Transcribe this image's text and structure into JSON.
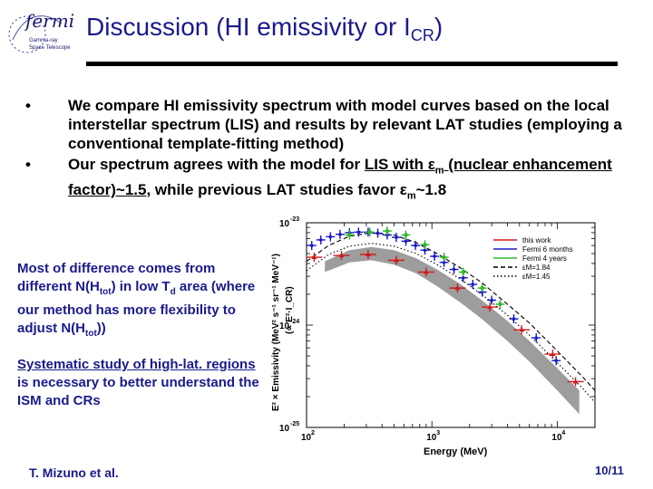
{
  "header": {
    "logo_text": "fermi",
    "logo_subtext_1": "Gamma-ray",
    "logo_subtext_2": "Space Telescope",
    "title_main": "Discussion (HI emissivity or I",
    "title_sub": "CR",
    "title_end": ")"
  },
  "bullets": [
    {
      "marker": "•",
      "text": "We compare HI emissivity spectrum with model curves based on the local interstellar spectrum (LIS) and results by relevant LAT studies (employing a conventional template-fitting method)"
    },
    {
      "marker": "•",
      "p1": "Our spectrum agrees with the model for ",
      "p2": "LIS with ε",
      "p3": "m",
      "p4": " (nuclear enhancement factor)~1.5",
      "p5": ", while previous LAT studies favor ε",
      "p6": "m",
      "p7": "~1.8"
    }
  ],
  "side_note_1": {
    "a": "Most of difference comes from different N(H",
    "b": "tot",
    "c": ") in low T",
    "d": "d",
    "e": " area (where our method has more flexibility to adjust N(H",
    "f": "tot",
    "g": "))"
  },
  "side_note_2": {
    "underlined": "Systematic study of high-lat. regions",
    "rest": " is necessary to better understand the ISM and CRs"
  },
  "footer": {
    "author": "T. Mizuno et al.",
    "page_num": "10",
    "page_total": "/11"
  },
  "chart_data": {
    "type": "scatter",
    "xlabel": "Energy (MeV)",
    "ylabel": "E² × Emissivity (MeV² s⁻¹ sr⁻¹ MeV⁻¹)",
    "ylabel_right": "(∝ E²·I_CR)",
    "x_scale": "log",
    "y_scale": "log",
    "xlim": [
      100,
      20000
    ],
    "ylim": [
      1e-25,
      1e-23
    ],
    "x_ticks": [
      {
        "value": 100,
        "base": "10",
        "exp": "2"
      },
      {
        "value": 1000,
        "base": "10",
        "exp": "3"
      },
      {
        "value": 10000,
        "base": "10",
        "exp": "4"
      }
    ],
    "y_ticks": [
      {
        "value": 1e-23,
        "base": "10",
        "exp": "-23"
      },
      {
        "value": 1e-24,
        "base": "10",
        "exp": "-24"
      },
      {
        "value": 1e-25,
        "base": "10",
        "exp": "-25"
      }
    ],
    "legend_position": "top-right",
    "colors": {
      "this_work": "#d11a1a",
      "fermi6": "#1818c8",
      "fermi4": "#2db82d",
      "band": "#8c8c8c",
      "model": "#000000"
    },
    "series": [
      {
        "name": "this work",
        "style": "points",
        "color": "#d11a1a",
        "x": [
          115,
          190,
          310,
          520,
          900,
          1600,
          2900,
          5200,
          9200,
          14000
        ],
        "y": [
          4.6e-24,
          4.8e-24,
          4.9e-24,
          4.3e-24,
          3.3e-24,
          2.3e-24,
          1.5e-24,
          9e-25,
          5.2e-25,
          2.8e-25
        ]
      },
      {
        "name": "Fermi 6 months",
        "style": "points",
        "color": "#1818c8",
        "x": [
          110,
          130,
          155,
          185,
          220,
          260,
          310,
          370,
          440,
          520,
          620,
          740,
          880,
          1050,
          1250,
          1500,
          1780,
          2120,
          2520,
          3000,
          4500,
          6800,
          9800
        ],
        "y": [
          6e-24,
          6.8e-24,
          7.3e-24,
          7.7e-24,
          8e-24,
          8.1e-24,
          8.1e-24,
          7.9e-24,
          7.6e-24,
          7.2e-24,
          6.6e-24,
          6e-24,
          5.4e-24,
          4.7e-24,
          4.1e-24,
          3.5e-24,
          2.9e-24,
          2.5e-24,
          2.1e-24,
          1.75e-24,
          1.15e-24,
          7.5e-25,
          4.5e-25
        ]
      },
      {
        "name": "Fermi 4 years",
        "style": "points",
        "color": "#2db82d",
        "x": [
          220,
          320,
          440,
          620,
          880,
          1250,
          1780,
          2520,
          3500
        ],
        "y": [
          7.6e-24,
          8.1e-24,
          8.3e-24,
          7.6e-24,
          6.1e-24,
          4.6e-24,
          3.3e-24,
          2.3e-24,
          1.6e-24
        ]
      },
      {
        "name": "εM=1.84",
        "style": "dashed",
        "color": "#000000",
        "x": [
          100,
          150,
          220,
          330,
          500,
          750,
          1100,
          1700,
          2500,
          4000,
          6000,
          10000,
          16000,
          20000
        ],
        "y": [
          4.2e-24,
          6e-24,
          7.4e-24,
          8e-24,
          7.6e-24,
          6.4e-24,
          5e-24,
          3.6e-24,
          2.6e-24,
          1.6e-24,
          1.05e-24,
          5.6e-25,
          3.1e-25,
          2.3e-25
        ]
      },
      {
        "name": "εM=1.45",
        "style": "dotted",
        "color": "#000000",
        "x": [
          100,
          150,
          220,
          330,
          500,
          750,
          1100,
          1700,
          2500,
          4000,
          6000,
          10000,
          16000,
          20000
        ],
        "y": [
          3.4e-24,
          4.9e-24,
          5.9e-24,
          6.3e-24,
          5.9e-24,
          5e-24,
          3.9e-24,
          2.8e-24,
          2e-24,
          1.25e-24,
          8e-25,
          4.3e-25,
          2.4e-25,
          1.75e-25
        ]
      }
    ],
    "band": {
      "x": [
        140,
        220,
        330,
        500,
        750,
        1100,
        1700,
        2500,
        4000,
        6000,
        10000,
        15000
      ],
      "y_low": [
        3.3e-24,
        4.1e-24,
        4.3e-24,
        3.9e-24,
        3.2e-24,
        2.4e-24,
        1.65e-24,
        1.15e-24,
        7e-25,
        4.4e-25,
        2.3e-25,
        1.35e-25
      ],
      "y_high": [
        4.2e-24,
        5.4e-24,
        5.8e-24,
        5.4e-24,
        4.5e-24,
        3.5e-24,
        2.5e-24,
        1.75e-24,
        1.1e-24,
        7e-25,
        3.8e-25,
        2.3e-25
      ]
    }
  }
}
